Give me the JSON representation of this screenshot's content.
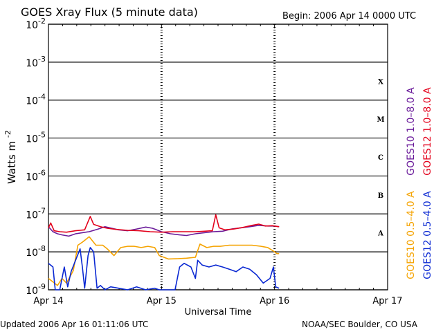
{
  "header": {
    "title": "GOES Xray Flux (5 minute data)",
    "begin": "Begin:  2006 Apr 14 0000 UTC"
  },
  "footer": {
    "updated": "Updated 2006 Apr 16 01:11:06 UTC",
    "credit": "NOAA/SEC Boulder, CO USA"
  },
  "chart_data": {
    "type": "line",
    "title": "GOES Xray Flux (5 minute data)",
    "xlabel": "Universal Time",
    "ylabel": "Watts m-2",
    "ylabel_base": "Watts m",
    "ylabel_exp": "-2",
    "y_scale": "log",
    "ylim": [
      1e-09,
      0.01
    ],
    "xlim_days": [
      0,
      3
    ],
    "x_ticks": [
      {
        "day": 0,
        "label": "Apr 14"
      },
      {
        "day": 1,
        "label": "Apr 15"
      },
      {
        "day": 2,
        "label": "Apr 16"
      },
      {
        "day": 3,
        "label": "Apr 17"
      }
    ],
    "y_ticks": [
      {
        "exp": -9
      },
      {
        "exp": -8
      },
      {
        "exp": -7
      },
      {
        "exp": -6
      },
      {
        "exp": -5
      },
      {
        "exp": -4
      },
      {
        "exp": -3
      },
      {
        "exp": -2
      }
    ],
    "flare_classes": [
      {
        "label": "A",
        "exp": -7.5
      },
      {
        "label": "B",
        "exp": -6.5
      },
      {
        "label": "C",
        "exp": -5.5
      },
      {
        "label": "M",
        "exp": -4.5
      },
      {
        "label": "X",
        "exp": -3.5
      }
    ],
    "grid": true,
    "legend_position": "right",
    "series": [
      {
        "name": "GOES10 1.0–8.0 A",
        "color": "#6a1b9a",
        "points": [
          [
            0.0,
            4.6e-08
          ],
          [
            0.04,
            3.4e-08
          ],
          [
            0.08,
            3e-08
          ],
          [
            0.12,
            2.8e-08
          ],
          [
            0.18,
            2.6e-08
          ],
          [
            0.24,
            3e-08
          ],
          [
            0.3,
            3.2e-08
          ],
          [
            0.36,
            3.4e-08
          ],
          [
            0.44,
            4e-08
          ],
          [
            0.5,
            4.6e-08
          ],
          [
            0.56,
            4.2e-08
          ],
          [
            0.62,
            3.8e-08
          ],
          [
            0.7,
            3.6e-08
          ],
          [
            0.78,
            4e-08
          ],
          [
            0.86,
            4.5e-08
          ],
          [
            0.92,
            4.2e-08
          ],
          [
            1.0,
            3.4e-08
          ],
          [
            1.08,
            3e-08
          ],
          [
            1.16,
            2.8e-08
          ],
          [
            1.22,
            2.7e-08
          ],
          [
            1.3,
            3e-08
          ],
          [
            1.38,
            3.2e-08
          ],
          [
            1.46,
            3.4e-08
          ],
          [
            1.54,
            3.5e-08
          ],
          [
            1.62,
            4e-08
          ],
          [
            1.7,
            4.3e-08
          ],
          [
            1.78,
            4.6e-08
          ],
          [
            1.86,
            5e-08
          ],
          [
            1.94,
            4.8e-08
          ],
          [
            2.0,
            4.8e-08
          ],
          [
            2.04,
            4.6e-08
          ]
        ]
      },
      {
        "name": "GOES12 1.0–8.0 A",
        "color": "#e3001b",
        "points": [
          [
            0.0,
            4.3e-08
          ],
          [
            0.02,
            5.8e-08
          ],
          [
            0.05,
            3.6e-08
          ],
          [
            0.1,
            3.4e-08
          ],
          [
            0.16,
            3.3e-08
          ],
          [
            0.24,
            3.6e-08
          ],
          [
            0.32,
            3.8e-08
          ],
          [
            0.37,
            8.6e-08
          ],
          [
            0.4,
            5.3e-08
          ],
          [
            0.46,
            4.6e-08
          ],
          [
            0.52,
            4.2e-08
          ],
          [
            0.6,
            3.9e-08
          ],
          [
            0.7,
            3.7e-08
          ],
          [
            0.8,
            3.6e-08
          ],
          [
            0.9,
            3.4e-08
          ],
          [
            1.0,
            3.3e-08
          ],
          [
            1.1,
            3.4e-08
          ],
          [
            1.2,
            3.4e-08
          ],
          [
            1.3,
            3.4e-08
          ],
          [
            1.38,
            3.5e-08
          ],
          [
            1.45,
            3.6e-08
          ],
          [
            1.48,
            9.5e-08
          ],
          [
            1.51,
            4.3e-08
          ],
          [
            1.56,
            3.8e-08
          ],
          [
            1.64,
            4e-08
          ],
          [
            1.72,
            4.4e-08
          ],
          [
            1.8,
            5e-08
          ],
          [
            1.86,
            5.4e-08
          ],
          [
            1.92,
            4.8e-08
          ],
          [
            1.98,
            4.9e-08
          ],
          [
            2.04,
            4.6e-08
          ]
        ]
      },
      {
        "name": "GOES10 0.5–4.0 A",
        "color": "#f5a300",
        "points": [
          [
            0.0,
            2e-09
          ],
          [
            0.08,
            1.3e-09
          ],
          [
            0.12,
            2e-09
          ],
          [
            0.16,
            1.5e-09
          ],
          [
            0.22,
            3.2e-09
          ],
          [
            0.26,
            1.5e-08
          ],
          [
            0.3,
            1.8e-08
          ],
          [
            0.36,
            2.5e-08
          ],
          [
            0.42,
            1.5e-08
          ],
          [
            0.48,
            1.5e-08
          ],
          [
            0.52,
            1.2e-08
          ],
          [
            0.58,
            8e-09
          ],
          [
            0.64,
            1.3e-08
          ],
          [
            0.7,
            1.4e-08
          ],
          [
            0.76,
            1.4e-08
          ],
          [
            0.82,
            1.3e-08
          ],
          [
            0.88,
            1.4e-08
          ],
          [
            0.94,
            1.3e-08
          ],
          [
            0.98,
            8e-09
          ],
          [
            1.06,
            6.5e-09
          ],
          [
            1.14,
            6.6e-09
          ],
          [
            1.22,
            6.8e-09
          ],
          [
            1.3,
            7.2e-09
          ],
          [
            1.34,
            1.6e-08
          ],
          [
            1.4,
            1.3e-08
          ],
          [
            1.46,
            1.4e-08
          ],
          [
            1.52,
            1.4e-08
          ],
          [
            1.6,
            1.5e-08
          ],
          [
            1.7,
            1.5e-08
          ],
          [
            1.8,
            1.5e-08
          ],
          [
            1.88,
            1.4e-08
          ],
          [
            1.94,
            1.3e-08
          ],
          [
            2.0,
            1e-08
          ],
          [
            2.02,
            9e-09
          ],
          [
            2.04,
            9e-09
          ]
        ]
      },
      {
        "name": "GOES12 0.5–4.0 A",
        "color": "#0a28d2",
        "points": [
          [
            0.0,
            5e-09
          ],
          [
            0.04,
            4e-09
          ],
          [
            0.06,
            1e-09
          ],
          [
            0.1,
            1e-09
          ],
          [
            0.14,
            4e-09
          ],
          [
            0.17,
            1.2e-09
          ],
          [
            0.2,
            3e-09
          ],
          [
            0.24,
            6e-09
          ],
          [
            0.28,
            1.2e-08
          ],
          [
            0.3,
            4e-09
          ],
          [
            0.32,
            1.1e-09
          ],
          [
            0.35,
            8e-09
          ],
          [
            0.37,
            1.3e-08
          ],
          [
            0.4,
            1e-08
          ],
          [
            0.43,
            1.1e-09
          ],
          [
            0.46,
            1.3e-09
          ],
          [
            0.5,
            1e-09
          ],
          [
            0.55,
            1.2e-09
          ],
          [
            0.62,
            1.1e-09
          ],
          [
            0.7,
            1e-09
          ],
          [
            0.78,
            1.2e-09
          ],
          [
            0.86,
            1e-09
          ],
          [
            0.94,
            1.1e-09
          ],
          [
            0.98,
            1e-09
          ],
          [
            1.12,
            1e-09
          ],
          [
            1.16,
            4e-09
          ],
          [
            1.2,
            5e-09
          ],
          [
            1.26,
            4e-09
          ],
          [
            1.3,
            2e-09
          ],
          [
            1.32,
            6e-09
          ],
          [
            1.36,
            4.5e-09
          ],
          [
            1.42,
            4e-09
          ],
          [
            1.48,
            4.5e-09
          ],
          [
            1.54,
            4e-09
          ],
          [
            1.6,
            3.5e-09
          ],
          [
            1.66,
            3e-09
          ],
          [
            1.72,
            4e-09
          ],
          [
            1.78,
            3.5e-09
          ],
          [
            1.84,
            2.5e-09
          ],
          [
            1.9,
            1.5e-09
          ],
          [
            1.96,
            2e-09
          ],
          [
            1.99,
            4e-09
          ],
          [
            2.01,
            1.2e-09
          ],
          [
            2.04,
            1.1e-09
          ]
        ]
      }
    ]
  }
}
